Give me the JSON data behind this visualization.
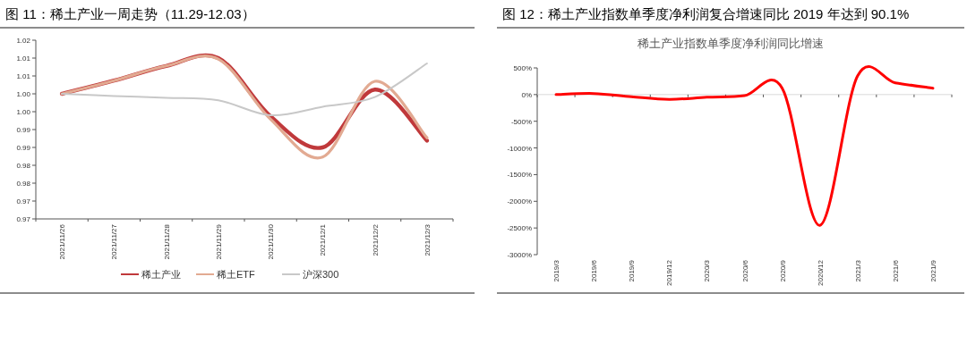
{
  "chart_data": [
    {
      "type": "line",
      "title": "图 11：稀土产业一周走势（11.29-12.03）",
      "categories": [
        "2021/11/26",
        "2021/11/27",
        "2021/11/28",
        "2021/11/29",
        "2021/11/30",
        "2021/12/1",
        "2021/12/2",
        "2021/12/3"
      ],
      "series": [
        {
          "name": "稀土产业",
          "color": "#c0393b",
          "values": [
            1.005,
            1.0087,
            1.0128,
            1.015,
            0.9987,
            0.99,
            1.0062,
            0.9919
          ]
        },
        {
          "name": "稀土ETF",
          "color": "#e2aa92",
          "values": [
            1.005,
            1.0087,
            1.0128,
            1.0147,
            0.9979,
            0.9873,
            1.0085,
            0.9927
          ]
        },
        {
          "name": "沪深300",
          "color": "#c8c8c8",
          "values": [
            1.005,
            1.0044,
            1.0039,
            1.0032,
            0.999,
            1.0014,
            1.0041,
            1.0135
          ]
        }
      ],
      "ylim": [
        0.97,
        1.02
      ],
      "yticks": [
        {
          "value": 0.97,
          "label": "0.97"
        },
        {
          "value": 0.975,
          "label": "0.97"
        },
        {
          "value": 0.98,
          "label": "0.98"
        },
        {
          "value": 0.985,
          "label": "0.98"
        },
        {
          "value": 0.99,
          "label": "0.99"
        },
        {
          "value": 0.995,
          "label": "0.99"
        },
        {
          "value": 1.0,
          "label": "1.00"
        },
        {
          "value": 1.005,
          "label": "1.00"
        },
        {
          "value": 1.01,
          "label": "1.01"
        },
        {
          "value": 1.015,
          "label": "1.01"
        },
        {
          "value": 1.02,
          "label": "1.02"
        }
      ],
      "legend": "bottom"
    },
    {
      "type": "line",
      "title": "图 12：稀土产业指数单季度净利润复合增速同比 2019 年达到 90.1%",
      "subtitle": "稀土产业指数单季度净利润同比增速",
      "categories": [
        "2019/3",
        "2019/6",
        "2019/9",
        "2019/12",
        "2020/3",
        "2020/6",
        "2020/9",
        "2020/12",
        "2021/3",
        "2021/6",
        "2021/9"
      ],
      "series": [
        {
          "color": "#ff0000",
          "values": [
            0,
            20,
            -40,
            -90,
            -50,
            -20,
            120,
            -2450,
            350,
            220,
            120
          ]
        }
      ],
      "ylim": [
        -3000,
        500
      ],
      "yticks": [
        {
          "value": -3000,
          "label": "-3000%"
        },
        {
          "value": -2500,
          "label": "-2500%"
        },
        {
          "value": -2000,
          "label": "-2000%"
        },
        {
          "value": -1500,
          "label": "-1500%"
        },
        {
          "value": -1000,
          "label": "-1000%"
        },
        {
          "value": -500,
          "label": "-500%"
        },
        {
          "value": 0,
          "label": "0%"
        },
        {
          "value": 500,
          "label": "500%"
        }
      ]
    }
  ]
}
